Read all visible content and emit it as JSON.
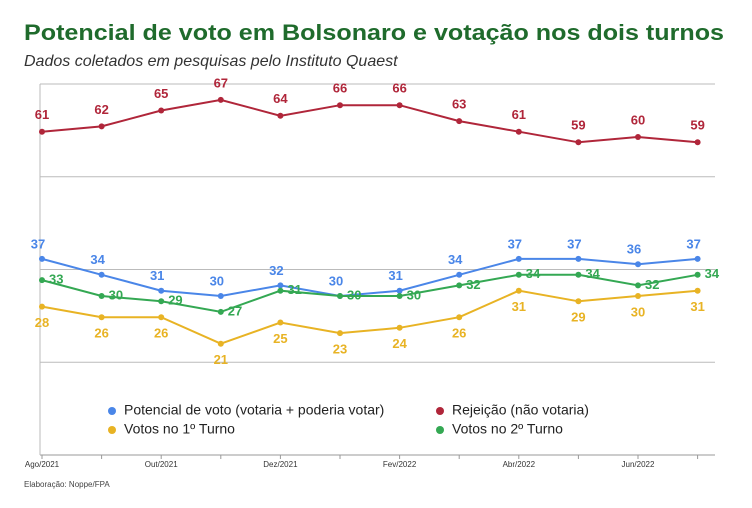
{
  "chart_data": {
    "type": "line",
    "title": "Potencial de voto em Bolsonaro e votação nos dois turnos",
    "subtitle": "Dados coletados em pesquisas pelo Instituto Quaest",
    "source": "Elaboração: Noppe/FPA",
    "categories": [
      "Ago/2021",
      null,
      "Out/2021",
      null,
      "Dez/2021",
      null,
      "Fev/2022",
      null,
      "Abr/2022",
      null,
      "Jun/2022",
      null
    ],
    "series": [
      {
        "name": "Potencial de voto (votaria + poderia votar)",
        "color": "#4a86e8",
        "values": [
          37,
          34,
          31,
          30,
          32,
          30,
          31,
          34,
          37,
          37,
          36,
          37
        ]
      },
      {
        "name": "Rejeição (não votaria)",
        "color": "#b0263a",
        "values": [
          61,
          62,
          65,
          67,
          64,
          66,
          66,
          63,
          61,
          59,
          60,
          59
        ]
      },
      {
        "name": "Votos no 1º Turno",
        "color": "#e8b324",
        "values": [
          28,
          26,
          26,
          21,
          25,
          23,
          24,
          26,
          31,
          29,
          30,
          31
        ]
      },
      {
        "name": "Votos no 2º Turno",
        "color": "#34a853",
        "values": [
          33,
          30,
          29,
          27,
          31,
          30,
          30,
          32,
          34,
          34,
          32,
          34
        ]
      }
    ],
    "ylim": [
      0,
      70
    ],
    "yticks": [
      0,
      17.5,
      35,
      52.5,
      70
    ],
    "grid": true
  }
}
